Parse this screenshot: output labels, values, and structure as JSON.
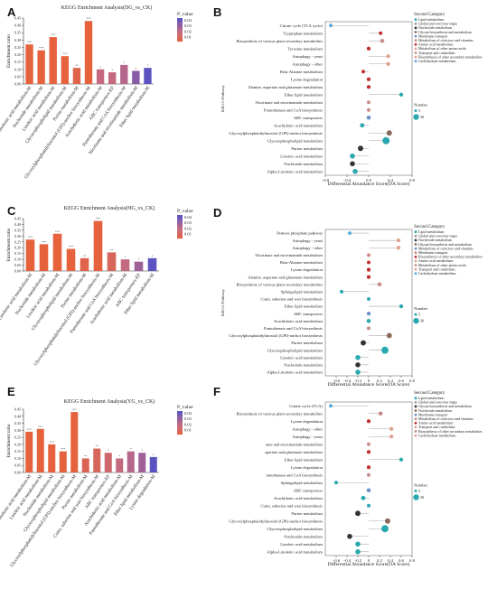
{
  "figure": {
    "colors": {
      "bar_low": "#e8623a",
      "bar_mid": "#c06a86",
      "bar_high": "#5b53c0",
      "dot_lipid": "#2aa8b0",
      "dot_global": "#9a9a9a",
      "dot_nucleotide": "#333333",
      "dot_glycan": "#8a6a5a",
      "dot_membrane": "#6a8fc8",
      "dot_cofactor": "#c98a8a",
      "dot_aminoacid": "#c03030",
      "dot_transport": "#e0a090",
      "dot_carbohydrate": "#5aa8e0",
      "stem": "#aaaaaa"
    }
  },
  "chart_data": [
    {
      "panel": "A",
      "type": "bar",
      "title": "KEGG Enrichment Analysis(DG_vs_CK)",
      "ylabel": "Enrichment ratio",
      "ylim": [
        0,
        0.45
      ],
      "yticks": [
        "0.00",
        "0.05",
        "0.10",
        "0.15",
        "0.20",
        "0.25",
        "0.30",
        "0.35",
        "0.40",
        "0.45"
      ],
      "legend_title": "P_value",
      "legend_ticks": [
        "0.04",
        "0.03",
        "0.02",
        "0.01"
      ],
      "categories": [
        "Alpha-Linolenic acid metabolism-M",
        "Nucleotide metabolism-M",
        "Linoleic acid metabolism-M",
        "Glycerophospholipid metabolism-M",
        "Purine metabolism-M",
        "Glycosylphosphatidylinositol (GPI)-anchor biosynthesis-M",
        "Arachidonic acid metabolism-M",
        "ABC transporters-EP",
        "Pantothenate and CoA biosynthesis-M",
        "Nicotinate and nicotinamide metabolism-M",
        "Ether lipid metabolism-M"
      ],
      "values": [
        0.27,
        0.23,
        0.32,
        0.19,
        0.11,
        0.43,
        0.1,
        0.08,
        0.13,
        0.09,
        0.11
      ],
      "p_values": [
        0.001,
        0.001,
        0.001,
        0.001,
        0.005,
        0.001,
        0.02,
        0.02,
        0.025,
        0.035,
        0.045
      ],
      "sig": [
        "***",
        "***",
        "***",
        "***",
        "**",
        "***",
        "*",
        "*",
        "*",
        "*",
        "*"
      ]
    },
    {
      "panel": "C",
      "type": "bar",
      "title": "KEGG Enrichment Analysis(HG_vs_CK)",
      "ylabel": "Enrichment ratio",
      "ylim": [
        0,
        0.45
      ],
      "yticks": [
        "0.00",
        "0.05",
        "0.10",
        "0.15",
        "0.20",
        "0.25",
        "0.30",
        "0.35",
        "0.40",
        "0.45"
      ],
      "legend_title": "P_value",
      "legend_ticks": [
        "0.04",
        "0.03",
        "0.02",
        "0.01"
      ],
      "categories": [
        "Alpha-Linolenic acid metabolism-M",
        "Nucleotide metabolism-M",
        "Linoleic acid metabolism-M",
        "Glycerophospholipid metabolism-M",
        "Purine metabolism-M",
        "Glycosylphosphatidylinositol (GPI)-anchor biosynthesis-M",
        "Pantothenate and CoA biosynthesis-M",
        "Arachidonic acid metabolism-M",
        "ABC transporters-EP",
        "Ether lipid metabolism-M"
      ],
      "values": [
        0.27,
        0.23,
        0.32,
        0.19,
        0.11,
        0.43,
        0.16,
        0.1,
        0.08,
        0.11
      ],
      "p_values": [
        0.001,
        0.001,
        0.001,
        0.001,
        0.005,
        0.001,
        0.01,
        0.02,
        0.03,
        0.045
      ],
      "sig": [
        "***",
        "***",
        "***",
        "***",
        "**",
        "***",
        "**",
        "*",
        "*",
        "*"
      ]
    },
    {
      "panel": "E",
      "type": "bar",
      "title": "KEGG Enrichment Analysis(YG_vs_CK)",
      "ylabel": "Enrichment ratio",
      "ylim": [
        0,
        0.45
      ],
      "yticks": [
        "0.00",
        "0.05",
        "0.10",
        "0.15",
        "0.20",
        "0.25",
        "0.30",
        "0.35",
        "0.40",
        "0.45"
      ],
      "legend_title": "P_value",
      "legend_ticks": [
        "0.04",
        "0.03",
        "0.02",
        "0.01"
      ],
      "categories": [
        "Alpha-Linolenic acid metabolism-M",
        "Linoleic acid metabolism-M",
        "Nucleotide metabolism-M",
        "Glycerophospholipid metabolism-M",
        "Glycosylphosphatidylinositol (GPI)-anchor biosynthesis-M",
        "Purine metabolism-M",
        "Cutin, suberine and wax biosynthesis-M",
        "ABC transporters-EP",
        "Arachidonic acid metabolism-M",
        "Pantothenate and CoA biosynthesis-M",
        "Ether lipid metabolism-M",
        "Lysine degradation-M"
      ],
      "values": [
        0.29,
        0.31,
        0.2,
        0.15,
        0.43,
        0.1,
        0.17,
        0.14,
        0.1,
        0.15,
        0.14,
        0.11
      ],
      "p_values": [
        0.001,
        0.001,
        0.001,
        0.001,
        0.001,
        0.008,
        0.01,
        0.015,
        0.02,
        0.025,
        0.03,
        0.045
      ],
      "sig": [
        "***",
        "***",
        "***",
        "***",
        "***",
        "**",
        "**",
        "*",
        "*",
        "*",
        "*",
        "*"
      ]
    },
    {
      "panel": "B",
      "type": "scatter",
      "xlabel": "Differential Abundance Score(DA Score)",
      "ylabel": "KEGG Pathway",
      "xlim": [
        -0.8,
        0.8
      ],
      "xticks": [
        "−0.8",
        "−0.4",
        "0.0",
        "0.4",
        "0.8"
      ],
      "legend_title": "Second Category",
      "legend_entries": [
        "Lipid metabolism",
        "Global and overview maps",
        "Nucleotide metabolism",
        "Glycan biosynthesis and metabolism",
        "Membrane transport",
        "Metabolism of cofactors and vitamins",
        "Amino acid metabolism",
        "Metabolism of other amino acids",
        "Transport and catabolism",
        "Biosynthesis of other secondary metabolites",
        "Carbohydrate metabolism"
      ],
      "size_legend_title": "Number",
      "size_legend": [
        "5",
        "30"
      ],
      "pathways": [
        "Citrate cycle (TCA cycle)",
        "Tryptophan metabolism",
        "Biosynthesis of various plant secondary metabolites",
        "Tyrosine metabolism",
        "Autophagy - yeast",
        "Autophagy - other",
        "Beta-Alanine metabolism",
        "Lysine degradation",
        "Alanine, aspartate and glutamate metabolism",
        "Ether lipid metabolism",
        "Nicotinate and nicotinamide metabolism",
        "Pantothenate and CoA biosynthesis",
        "ABC transporters",
        "Arachidonic acid metabolism",
        "Glycosylphosphatidylinositol (GPI)-anchor biosynthesis",
        "Glycerophospholipid metabolism",
        "Purine metabolism",
        "Linoleic acid metabolism",
        "Nucleotide metabolism",
        "Alpha-Linolenic acid metabolism"
      ],
      "scores": [
        -0.7,
        0.22,
        0.25,
        0.0,
        0.36,
        0.36,
        -0.1,
        0.0,
        0.0,
        0.6,
        0.0,
        0.0,
        0.0,
        -0.12,
        0.38,
        0.32,
        -0.15,
        -0.3,
        -0.3,
        -0.25
      ],
      "numbers": [
        2,
        2,
        4,
        3,
        3,
        3,
        2,
        3,
        3,
        3,
        2,
        2,
        4,
        5,
        10,
        25,
        10,
        8,
        8,
        8
      ],
      "categories": [
        "carb",
        "amino",
        "biosyn",
        "amino",
        "transport",
        "transport",
        "othamino",
        "amino",
        "amino",
        "lipid",
        "cofactor",
        "cofactor",
        "membrane",
        "lipid",
        "glycan",
        "lipid",
        "nucleotide",
        "lipid",
        "nucleotide",
        "lipid"
      ]
    },
    {
      "panel": "D",
      "type": "scatter",
      "xlabel": "Differential Abundance Score(DA Score)",
      "ylabel": "KEGG Pathway",
      "xlim": [
        -0.8,
        0.8
      ],
      "xticks": [
        "−0.6",
        "−0.4",
        "−0.2",
        "0",
        "0.2",
        "0.4",
        "0.6",
        "0.8"
      ],
      "legend_title": "Second Category",
      "legend_entries": [
        "Lipid metabolism",
        "Global and overview maps",
        "Nucleotide metabolism",
        "Glycan biosynthesis and metabolism",
        "Metabolism of cofactors and vitamins",
        "Membrane transport",
        "Biosynthesis of other secondary metabolites",
        "Amino acid metabolism",
        "Metabolism of other amino acids",
        "Transport and catabolism",
        "Carbohydrate metabolism"
      ],
      "size_legend_title": "Number",
      "size_legend": [
        "5",
        "30"
      ],
      "pathways": [
        "Pentose phosphate pathway",
        "Autophagy - yeast",
        "Autophagy - other",
        "Nicotinate and nicotinamide metabolism",
        "Beta-Alanine metabolism",
        "Lysine degradation",
        "Alanine, aspartate and glutamate metabolism",
        "Biosynthesis of various plant secondary metabolites",
        "Sphingolipid metabolism",
        "Cutin, suberine and wax biosynthesis",
        "Ether lipid metabolism",
        "ABC transporters",
        "Arachidonic acid metabolism",
        "Pantothenate and CoA biosynthesis",
        "Glycosylphosphatidylinositol (GPI)-anchor biosynthesis",
        "Purine metabolism",
        "Glycerophospholipid metabolism",
        "Linoleic acid metabolism",
        "Nucleotide metabolism",
        "Alpha-Linolenic acid metabolism"
      ],
      "scores": [
        -0.35,
        0.55,
        0.55,
        0.0,
        0.0,
        0.0,
        0.0,
        0.2,
        -0.5,
        0.0,
        0.6,
        0.0,
        0.0,
        0.0,
        0.38,
        -0.1,
        0.3,
        -0.2,
        -0.2,
        -0.2
      ],
      "numbers": [
        2,
        3,
        3,
        2,
        2,
        3,
        3,
        4,
        2,
        2,
        3,
        3,
        4,
        2,
        10,
        10,
        25,
        8,
        8,
        8
      ],
      "categories": [
        "carb",
        "transport",
        "transport",
        "cofactor",
        "othamino",
        "amino",
        "amino",
        "biosyn",
        "lipid",
        "lipid",
        "lipid",
        "membrane",
        "lipid",
        "cofactor",
        "glycan",
        "nucleotide",
        "lipid",
        "lipid",
        "nucleotide",
        "lipid"
      ]
    },
    {
      "panel": "F",
      "type": "scatter",
      "xlabel": "Differential Abundance Score(DA Score)",
      "ylabel": "",
      "xlim": [
        -0.8,
        0.8
      ],
      "xticks": [
        "−0.6",
        "−0.4",
        "−0.2",
        "0",
        "0.2",
        "0.4",
        "0.6",
        "0.8"
      ],
      "legend_title": "Second Category",
      "legend_entries": [
        "Lipid metabolism",
        "Global and overview maps",
        "Glycan biosynthesis and metabolism",
        "Nucleotide metabolism",
        "Membrane transport",
        "Metabolism of cofactors and vitamins",
        "Amino acid metabolism",
        "Transport and catabolism",
        "Biosynthesis of other secondary metabolites",
        "Carbohydrate metabolism"
      ],
      "size_legend_title": "Number",
      "size_legend": [
        "5",
        "30"
      ],
      "pathways": [
        "Citrate cycle (TCA)",
        "Biosynthesis of various plant secondary metabolites",
        "Lysine degradation",
        "Autophagy - other",
        "Autophagy - yeast",
        "nate and nicotinamide metabolism",
        "spartate and glutamate metabolism",
        "Ether lipid metabolism",
        "Lysine degradation",
        "'antothenate and CoA biosynthesis",
        "Sphingolipid metabolism",
        "ABC transporters",
        "Arachidonic acid metabolism",
        "Cutin, suberine and wax biosynthesis",
        "Purine metabolism",
        "Glycosylphosphatidylinositol (GPI)-anchor biosynthesis",
        "Glycerophospholipid metabolism",
        "Nucleotide metabolism",
        "Linoleic acid metabolism",
        "Alpha-Linolenic acid metabolism"
      ],
      "scores": [
        -0.7,
        0.22,
        0.0,
        0.42,
        0.42,
        0.0,
        0.0,
        0.6,
        0.0,
        0.0,
        -0.6,
        0.0,
        -0.1,
        0.0,
        -0.2,
        0.35,
        0.3,
        -0.35,
        -0.2,
        -0.2
      ],
      "numbers": [
        2,
        4,
        3,
        3,
        3,
        2,
        3,
        3,
        3,
        2,
        2,
        4,
        5,
        2,
        10,
        10,
        25,
        8,
        8,
        8
      ],
      "categories": [
        "carb",
        "biosyn",
        "amino",
        "transport",
        "transport",
        "cofactor",
        "amino",
        "lipid",
        "amino",
        "cofactor",
        "lipid",
        "membrane",
        "lipid",
        "lipid",
        "nucleotide",
        "glycan",
        "lipid",
        "nucleotide",
        "lipid",
        "lipid"
      ]
    }
  ]
}
